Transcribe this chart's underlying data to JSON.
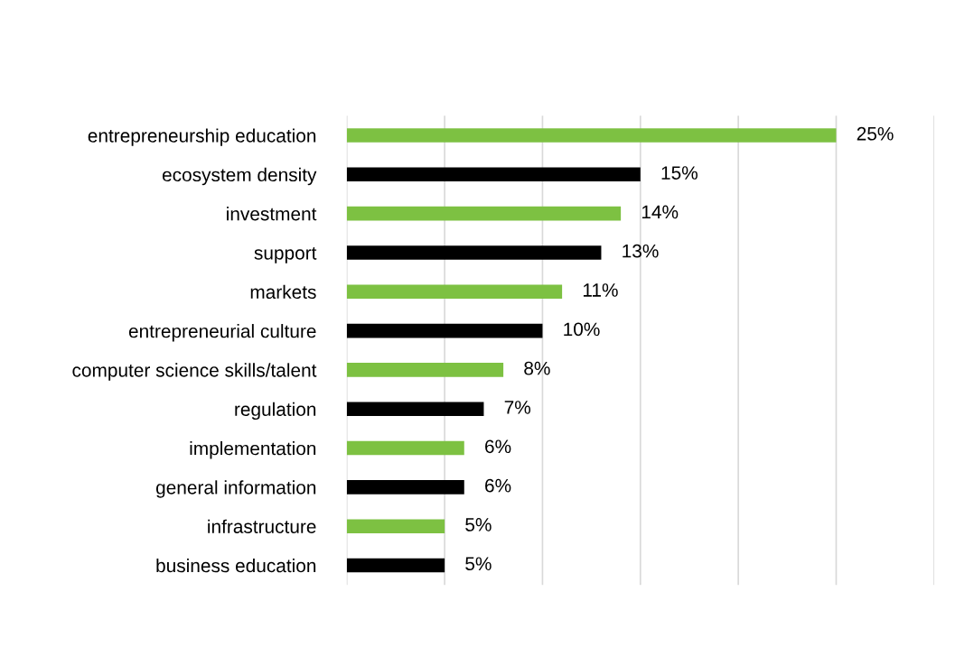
{
  "chart_data": {
    "type": "bar",
    "orientation": "horizontal",
    "categories": [
      "entrepreneurship education",
      "ecosystem density",
      "investment",
      "support",
      "markets",
      "entrepreneurial culture",
      "computer science skills/talent",
      "regulation",
      "implementation",
      "general information",
      "infrastructure",
      "business education"
    ],
    "values": [
      25,
      15,
      14,
      13,
      11,
      10,
      8,
      7,
      6,
      6,
      5,
      5
    ],
    "colors": [
      "#7dc142",
      "#000000",
      "#7dc142",
      "#000000",
      "#7dc142",
      "#000000",
      "#7dc142",
      "#000000",
      "#7dc142",
      "#000000",
      "#7dc142",
      "#000000"
    ],
    "value_labels": [
      "25%",
      "15%",
      "14%",
      "13%",
      "11%",
      "10%",
      "8%",
      "7%",
      "6%",
      "6%",
      "5%",
      "5%"
    ],
    "xlim": [
      0,
      30
    ],
    "xticks": [
      {
        "value": 0,
        "label": null
      },
      {
        "value": 5,
        "label": null
      },
      {
        "value": 10,
        "label": null
      },
      {
        "value": 15,
        "label": null
      },
      {
        "value": 20,
        "label": null
      },
      {
        "value": 25,
        "label": null
      },
      {
        "value": 30,
        "label": null
      }
    ],
    "grid": "x",
    "tick_labels": "y",
    "legend": false
  }
}
